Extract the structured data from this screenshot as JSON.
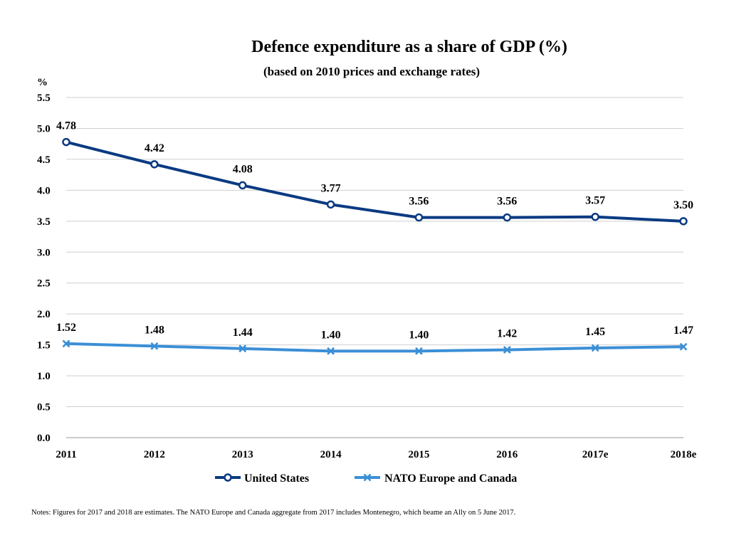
{
  "chart_data": {
    "type": "line",
    "title": "Defence expenditure as a share of GDP (%)",
    "subtitle": "(based on 2010 prices and exchange rates)",
    "ylabel": "%",
    "xlabel": "",
    "categories": [
      "2011",
      "2012",
      "2013",
      "2014",
      "2015",
      "2016",
      "2017e",
      "2018e"
    ],
    "ylim": [
      0,
      5.5
    ],
    "yticks": [
      "0.0",
      "0.5",
      "1.0",
      "1.5",
      "2.0",
      "2.5",
      "3.0",
      "3.5",
      "4.0",
      "4.5",
      "5.0",
      "5.5"
    ],
    "grid": true,
    "legend_position": "bottom",
    "series": [
      {
        "name": "United States",
        "values": [
          4.78,
          4.42,
          4.08,
          3.77,
          3.56,
          3.56,
          3.57,
          3.5
        ],
        "labels": [
          "4.78",
          "4.42",
          "4.08",
          "3.77",
          "3.56",
          "3.56",
          "3.57",
          "3.50"
        ],
        "color": "#0b3a82",
        "marker": "circle"
      },
      {
        "name": "NATO Europe and Canada",
        "values": [
          1.52,
          1.48,
          1.44,
          1.4,
          1.4,
          1.42,
          1.45,
          1.47
        ],
        "labels": [
          "1.52",
          "1.48",
          "1.44",
          "1.40",
          "1.40",
          "1.42",
          "1.45",
          "1.47"
        ],
        "color": "#3b8fd6",
        "marker": "x"
      }
    ]
  },
  "notes": "Notes: Figures for 2017 and 2018 are estimates. The NATO Europe and Canada aggregate from 2017 includes Montenegro, which beame an Ally on 5 June 2017."
}
